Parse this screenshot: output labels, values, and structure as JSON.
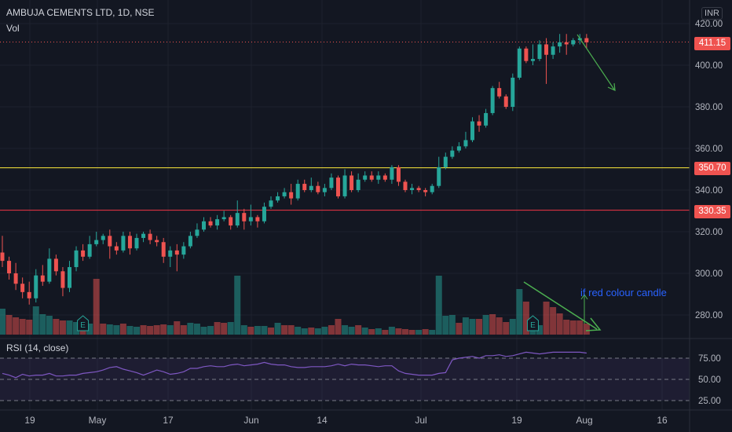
{
  "header": {
    "title": "AMBUJA CEMENTS LTD, 1D, NSE",
    "vol_label": "Vol",
    "currency": "INR"
  },
  "rsi": {
    "label": "RSI (14, close)",
    "levels": [
      "75.00",
      "50.00",
      "25.00"
    ]
  },
  "annotation": {
    "text": "if red colour candle"
  },
  "price_tags": {
    "last": "411.15",
    "resistance": "350.70",
    "support": "330.35"
  },
  "colors": {
    "background": "#131722",
    "up": "#26a69a",
    "down": "#ef5350",
    "support_line": "#f23645",
    "resistance_line": "#ffeb3b",
    "rsi_line": "#7e57c2",
    "arrow": "#4caf50",
    "annotation_text": "#2962ff"
  },
  "chart_data": {
    "type": "candlestick",
    "title": "AMBUJA CEMENTS LTD, 1D, NSE",
    "currency": "INR",
    "y_range": [
      270,
      425
    ],
    "y_ticks": [
      280,
      300,
      320,
      340,
      360,
      380,
      400,
      420
    ],
    "x_ticks": [
      "19",
      "May",
      "17",
      "Jun",
      "14",
      "Jul",
      "19",
      "Aug",
      "16"
    ],
    "last_price": 411.15,
    "horizontal_levels": [
      {
        "value": 350.7,
        "color": "#ffeb3b"
      },
      {
        "value": 330.35,
        "color": "#f23645"
      }
    ],
    "candles": [
      [
        310,
        306,
        318,
        303
      ],
      [
        306,
        300,
        308,
        297
      ],
      [
        300,
        295,
        305,
        292
      ],
      [
        295,
        291,
        298,
        288
      ],
      [
        291,
        288,
        296,
        285
      ],
      [
        288,
        299,
        302,
        286
      ],
      [
        299,
        296,
        304,
        294
      ],
      [
        296,
        307,
        312,
        295
      ],
      [
        307,
        301,
        309,
        299
      ],
      [
        301,
        293,
        303,
        289
      ],
      [
        293,
        303,
        306,
        291
      ],
      [
        303,
        311,
        313,
        301
      ],
      [
        311,
        308,
        314,
        306
      ],
      [
        308,
        314,
        318,
        307
      ],
      [
        314,
        316,
        320,
        313
      ],
      [
        316,
        318,
        319,
        314
      ],
      [
        318,
        313,
        321,
        307
      ],
      [
        313,
        311,
        315,
        309
      ],
      [
        311,
        318,
        320,
        310
      ],
      [
        318,
        312,
        320,
        309
      ],
      [
        312,
        317,
        319,
        311
      ],
      [
        317,
        319,
        320,
        315
      ],
      [
        319,
        316,
        321,
        314
      ],
      [
        316,
        315,
        318,
        313
      ],
      [
        315,
        308,
        317,
        305
      ],
      [
        308,
        311,
        313,
        303
      ],
      [
        311,
        309,
        314,
        301
      ],
      [
        309,
        313,
        315,
        307
      ],
      [
        313,
        318,
        320,
        312
      ],
      [
        318,
        321,
        324,
        317
      ],
      [
        321,
        325,
        327,
        320
      ],
      [
        325,
        323,
        327,
        322
      ],
      [
        323,
        326,
        328,
        321
      ],
      [
        326,
        327,
        330,
        325
      ],
      [
        327,
        323,
        328,
        321
      ],
      [
        323,
        329,
        335,
        322
      ],
      [
        329,
        325,
        331,
        321
      ],
      [
        325,
        327,
        333,
        323
      ],
      [
        327,
        325,
        328,
        322
      ],
      [
        325,
        332,
        334,
        324
      ],
      [
        332,
        335,
        337,
        331
      ],
      [
        335,
        337,
        339,
        334
      ],
      [
        337,
        339,
        341,
        336
      ],
      [
        339,
        336,
        343,
        333
      ],
      [
        336,
        343,
        345,
        335
      ],
      [
        343,
        340,
        345,
        339
      ],
      [
        340,
        342,
        346,
        339
      ],
      [
        342,
        339,
        344,
        338
      ],
      [
        339,
        341,
        343,
        337
      ],
      [
        341,
        346,
        348,
        340
      ],
      [
        346,
        337,
        347,
        336
      ],
      [
        337,
        347,
        350,
        336
      ],
      [
        347,
        340,
        349,
        339
      ],
      [
        340,
        345,
        348,
        339
      ],
      [
        345,
        347,
        349,
        344
      ],
      [
        347,
        345,
        349,
        344
      ],
      [
        345,
        347,
        349,
        343
      ],
      [
        347,
        345,
        348,
        344
      ],
      [
        345,
        351,
        352,
        343
      ],
      [
        351,
        344,
        352,
        342
      ],
      [
        344,
        340,
        345,
        339
      ],
      [
        340,
        341,
        343,
        338
      ],
      [
        341,
        340,
        342,
        339
      ],
      [
        340,
        339,
        341,
        337
      ],
      [
        339,
        342,
        343,
        338
      ],
      [
        342,
        351,
        356,
        341
      ],
      [
        351,
        356,
        358,
        350
      ],
      [
        356,
        359,
        361,
        355
      ],
      [
        359,
        361,
        363,
        358
      ],
      [
        361,
        364,
        368,
        360
      ],
      [
        364,
        373,
        375,
        363
      ],
      [
        373,
        371,
        376,
        368
      ],
      [
        371,
        377,
        379,
        370
      ],
      [
        377,
        389,
        390,
        376
      ],
      [
        389,
        385,
        392,
        384
      ],
      [
        385,
        380,
        386,
        379
      ],
      [
        380,
        394,
        396,
        378
      ],
      [
        394,
        408,
        409,
        393
      ],
      [
        408,
        402,
        409,
        401
      ],
      [
        402,
        403,
        410,
        400
      ],
      [
        403,
        410,
        412,
        402
      ],
      [
        410,
        405,
        413,
        391
      ],
      [
        405,
        409,
        411,
        403
      ],
      [
        409,
        411,
        415,
        406
      ],
      [
        411,
        410,
        415,
        405
      ],
      [
        410,
        412,
        413,
        409
      ],
      [
        412,
        413,
        415,
        410
      ],
      [
        413,
        411,
        415,
        408
      ]
    ],
    "volume": [
      [
        1,
        33
      ],
      [
        0,
        25
      ],
      [
        0,
        22
      ],
      [
        0,
        20
      ],
      [
        0,
        19
      ],
      [
        1,
        36
      ],
      [
        1,
        26
      ],
      [
        1,
        24
      ],
      [
        0,
        20
      ],
      [
        0,
        18
      ],
      [
        1,
        18
      ],
      [
        1,
        16
      ],
      [
        0,
        13
      ],
      [
        1,
        14
      ],
      [
        0,
        71
      ],
      [
        0,
        14
      ],
      [
        1,
        13
      ],
      [
        1,
        12
      ],
      [
        0,
        14
      ],
      [
        1,
        11
      ],
      [
        1,
        10
      ],
      [
        0,
        12
      ],
      [
        0,
        11
      ],
      [
        0,
        12
      ],
      [
        0,
        13
      ],
      [
        1,
        12
      ],
      [
        0,
        17
      ],
      [
        0,
        12
      ],
      [
        1,
        15
      ],
      [
        1,
        14
      ],
      [
        1,
        10
      ],
      [
        1,
        11
      ],
      [
        0,
        16
      ],
      [
        0,
        15
      ],
      [
        1,
        16
      ],
      [
        1,
        75
      ],
      [
        1,
        12
      ],
      [
        0,
        10
      ],
      [
        1,
        11
      ],
      [
        1,
        11
      ],
      [
        0,
        9
      ],
      [
        1,
        15
      ],
      [
        0,
        12
      ],
      [
        0,
        12
      ],
      [
        1,
        10
      ],
      [
        1,
        8
      ],
      [
        0,
        9
      ],
      [
        1,
        8
      ],
      [
        1,
        10
      ],
      [
        0,
        12
      ],
      [
        0,
        20
      ],
      [
        1,
        12
      ],
      [
        1,
        10
      ],
      [
        0,
        12
      ],
      [
        1,
        9
      ],
      [
        0,
        7
      ],
      [
        1,
        8
      ],
      [
        0,
        6
      ],
      [
        1,
        10
      ],
      [
        0,
        8
      ],
      [
        0,
        7
      ],
      [
        0,
        6
      ],
      [
        1,
        6
      ],
      [
        0,
        7
      ],
      [
        1,
        6
      ],
      [
        1,
        75
      ],
      [
        1,
        24
      ],
      [
        1,
        25
      ],
      [
        0,
        15
      ],
      [
        1,
        22
      ],
      [
        1,
        20
      ],
      [
        0,
        20
      ],
      [
        1,
        25
      ],
      [
        0,
        26
      ],
      [
        0,
        22
      ],
      [
        0,
        16
      ],
      [
        1,
        20
      ],
      [
        1,
        58
      ],
      [
        0,
        42
      ],
      [
        1,
        22
      ],
      [
        1,
        12
      ],
      [
        0,
        42
      ],
      [
        0,
        35
      ],
      [
        0,
        27
      ],
      [
        0,
        19
      ],
      [
        0,
        18
      ],
      [
        0,
        18
      ],
      [
        0,
        14
      ]
    ],
    "rsi": [
      57,
      55,
      52,
      56,
      54,
      55,
      55,
      57,
      54,
      54,
      55,
      55,
      57,
      58,
      59,
      61,
      64,
      65,
      62,
      60,
      58,
      55,
      58,
      61,
      59,
      56,
      57,
      59,
      63,
      63,
      65,
      66,
      65,
      65,
      67,
      68,
      66,
      67,
      68,
      70,
      68,
      67,
      67,
      65,
      64,
      64,
      65,
      65,
      65,
      66,
      68,
      66,
      68,
      67,
      67,
      66,
      65,
      66,
      66,
      60,
      57,
      56,
      55,
      55,
      55,
      57,
      58,
      73,
      75,
      76,
      77,
      75,
      78,
      78,
      79,
      77,
      78,
      80,
      82,
      81,
      80,
      81,
      82,
      82,
      82,
      82,
      82,
      81
    ]
  }
}
